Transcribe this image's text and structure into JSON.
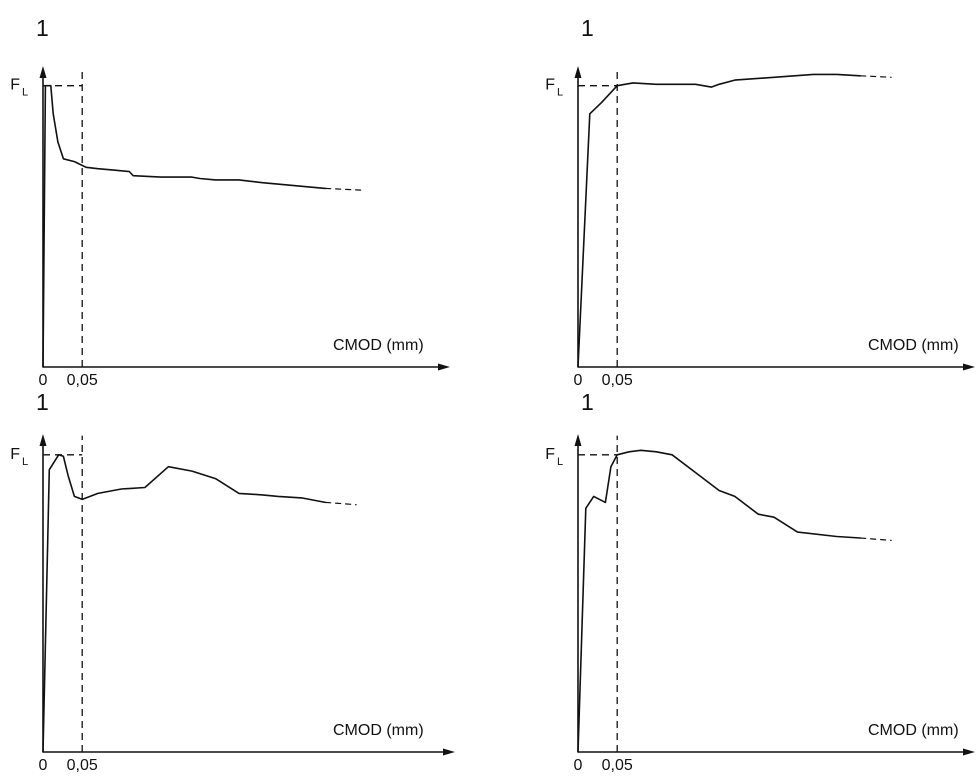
{
  "chart_data": [
    {
      "type": "line",
      "panel_label": "1",
      "xlabel": "CMOD (mm)",
      "ylabel_main": "F",
      "ylabel_sub": "L",
      "x_ticks": [
        "0",
        "0,05"
      ],
      "xlim": [
        0,
        0.5
      ],
      "ylim": [
        0,
        1.07
      ],
      "reference_x": 0.05,
      "reference_level": 1.0,
      "curve": [
        [
          0,
          0
        ],
        [
          0.003,
          1.0
        ],
        [
          0.01,
          1.0
        ],
        [
          0.013,
          0.9
        ],
        [
          0.019,
          0.8
        ],
        [
          0.026,
          0.74
        ],
        [
          0.04,
          0.73
        ],
        [
          0.055,
          0.71
        ],
        [
          0.07,
          0.705
        ],
        [
          0.09,
          0.7
        ],
        [
          0.11,
          0.695
        ],
        [
          0.115,
          0.68
        ],
        [
          0.15,
          0.675
        ],
        [
          0.19,
          0.675
        ],
        [
          0.2,
          0.67
        ],
        [
          0.22,
          0.665
        ],
        [
          0.25,
          0.665
        ],
        [
          0.28,
          0.655
        ],
        [
          0.32,
          0.645
        ],
        [
          0.36,
          0.635
        ]
      ],
      "extrapolation": [
        [
          0.36,
          0.635
        ],
        [
          0.41,
          0.628
        ]
      ]
    },
    {
      "type": "line",
      "panel_label": "1",
      "xlabel": "CMOD (mm)",
      "ylabel_main": "F",
      "ylabel_sub": "L",
      "x_ticks": [
        "0",
        "0,05"
      ],
      "xlim": [
        0,
        0.5
      ],
      "ylim": [
        0,
        1.07
      ],
      "reference_x": 0.05,
      "reference_level": 1.0,
      "curve": [
        [
          0,
          0
        ],
        [
          0.015,
          0.9
        ],
        [
          0.03,
          0.94
        ],
        [
          0.05,
          1.0
        ],
        [
          0.07,
          1.01
        ],
        [
          0.1,
          1.005
        ],
        [
          0.15,
          1.005
        ],
        [
          0.17,
          0.995
        ],
        [
          0.18,
          1.005
        ],
        [
          0.2,
          1.02
        ],
        [
          0.25,
          1.03
        ],
        [
          0.3,
          1.04
        ],
        [
          0.33,
          1.04
        ],
        [
          0.36,
          1.035
        ]
      ],
      "extrapolation": [
        [
          0.36,
          1.035
        ],
        [
          0.4,
          1.03
        ]
      ]
    },
    {
      "type": "line",
      "panel_label": "1",
      "xlabel": "CMOD (mm)",
      "ylabel_main": "F",
      "ylabel_sub": "L",
      "x_ticks": [
        "0",
        "0,05"
      ],
      "xlim": [
        0,
        0.5
      ],
      "ylim": [
        0,
        1.07
      ],
      "reference_x": 0.05,
      "reference_level": 1.0,
      "curve": [
        [
          0,
          0
        ],
        [
          0.008,
          0.95
        ],
        [
          0.02,
          1.0
        ],
        [
          0.026,
          0.995
        ],
        [
          0.032,
          0.93
        ],
        [
          0.04,
          0.86
        ],
        [
          0.05,
          0.85
        ],
        [
          0.07,
          0.87
        ],
        [
          0.1,
          0.885
        ],
        [
          0.13,
          0.89
        ],
        [
          0.16,
          0.96
        ],
        [
          0.19,
          0.945
        ],
        [
          0.22,
          0.92
        ],
        [
          0.25,
          0.87
        ],
        [
          0.28,
          0.865
        ],
        [
          0.3,
          0.86
        ],
        [
          0.33,
          0.855
        ],
        [
          0.36,
          0.84
        ]
      ],
      "extrapolation": [
        [
          0.36,
          0.84
        ],
        [
          0.4,
          0.832
        ]
      ]
    },
    {
      "type": "line",
      "panel_label": "1",
      "xlabel": "CMOD (mm)",
      "ylabel_main": "F",
      "ylabel_sub": "L",
      "x_ticks": [
        "0",
        "0,05"
      ],
      "xlim": [
        0,
        0.5
      ],
      "ylim": [
        0,
        1.07
      ],
      "reference_x": 0.05,
      "reference_level": 1.0,
      "curve": [
        [
          0,
          0
        ],
        [
          0.01,
          0.82
        ],
        [
          0.02,
          0.86
        ],
        [
          0.035,
          0.84
        ],
        [
          0.042,
          0.96
        ],
        [
          0.05,
          1.0
        ],
        [
          0.065,
          1.01
        ],
        [
          0.08,
          1.015
        ],
        [
          0.1,
          1.01
        ],
        [
          0.12,
          1.0
        ],
        [
          0.15,
          0.94
        ],
        [
          0.18,
          0.88
        ],
        [
          0.2,
          0.86
        ],
        [
          0.23,
          0.8
        ],
        [
          0.25,
          0.79
        ],
        [
          0.28,
          0.74
        ],
        [
          0.33,
          0.725
        ],
        [
          0.36,
          0.72
        ]
      ],
      "extrapolation": [
        [
          0.36,
          0.72
        ],
        [
          0.4,
          0.712
        ]
      ]
    }
  ]
}
